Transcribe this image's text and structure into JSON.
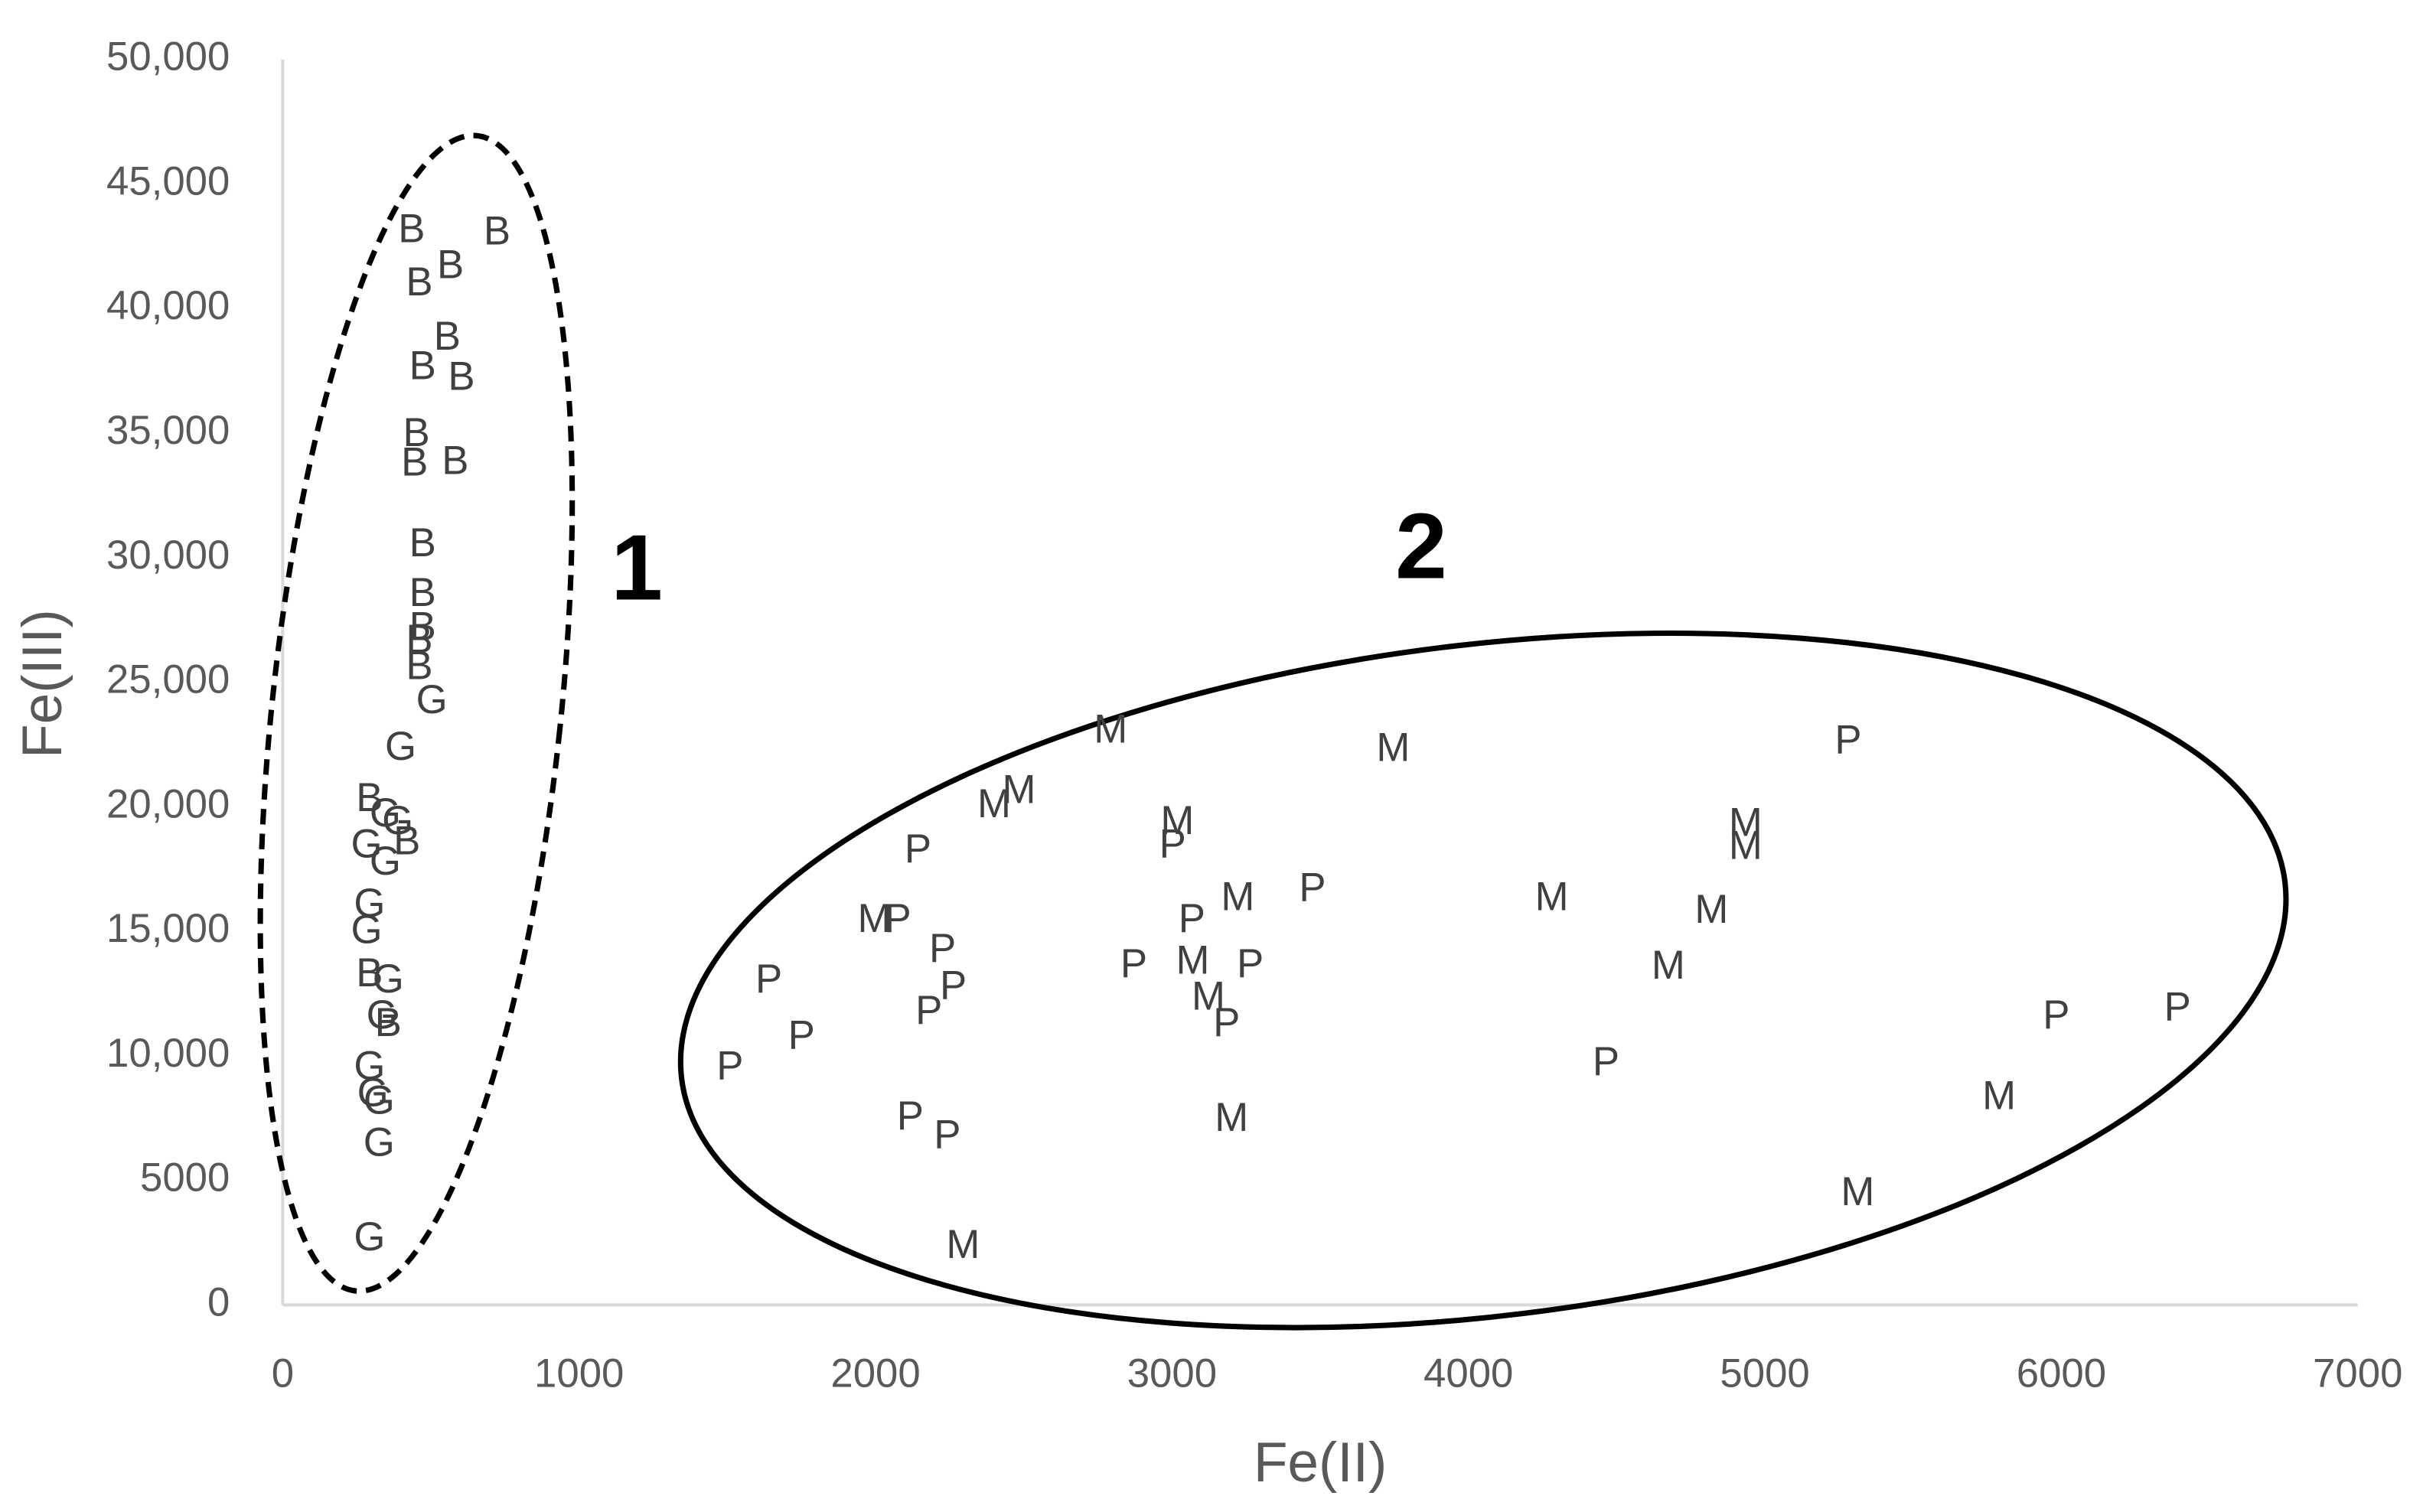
{
  "chart_data": {
    "type": "scatter",
    "x_label": "Fe(II)",
    "y_label": "Fe(III)",
    "xlim": [
      0,
      7000
    ],
    "xticks": [
      0,
      1000,
      2000,
      3000,
      4000,
      5000,
      6000,
      7000
    ],
    "ylim": [
      0,
      50000
    ],
    "yticks": [
      0,
      5000,
      {
        "value": 10000,
        "label": "10,000"
      },
      {
        "value": 15000,
        "label": "15,000"
      },
      {
        "value": 20000,
        "label": "20,000"
      },
      {
        "value": 25000,
        "label": "25,000"
      },
      {
        "value": 30000,
        "label": "30,000"
      },
      {
        "value": 35000,
        "label": "35,000"
      },
      {
        "value": 40000,
        "label": "40,000"
      },
      {
        "value": 45000,
        "label": "45,000"
      },
      {
        "value": 50000,
        "label": "50,000"
      }
    ],
    "grid": false,
    "annotations": [
      "1",
      "2"
    ],
    "series": [
      {
        "name": "B",
        "color": "#404040",
        "x": [
          435,
          723,
          566,
          461,
          555,
          472,
          603,
          451,
          445,
          582,
          472,
          472,
          472,
          461,
          461,
          293,
          293,
          356,
          419
        ],
        "values": [
          43100,
          43000,
          41650,
          40960,
          38780,
          37590,
          37160,
          34910,
          33730,
          33790,
          30490,
          28490,
          27120,
          26620,
          25560,
          20260,
          13220,
          11220,
          18520
        ]
      },
      {
        "name": "G",
        "color": "#404040",
        "x": [
          503,
          398,
          346,
          388,
          283,
          346,
          293,
          283,
          356,
          335,
          293,
          304,
          325,
          325,
          293
        ],
        "values": [
          24190,
          22320,
          19640,
          19330,
          18390,
          17710,
          16020,
          14960,
          12970,
          11530,
          9480,
          8420,
          8100,
          6420,
          2620
        ]
      },
      {
        "name": "P",
        "color": "#404040",
        "x": [
          5281,
          2143,
          3002,
          2075,
          3067,
          3474,
          1640,
          2226,
          2262,
          2180,
          2871,
          3264,
          3184,
          1750,
          1509,
          2117,
          2242,
          4464,
          5983,
          6392
        ],
        "values": [
          22570,
          18200,
          18390,
          15400,
          15400,
          16650,
          12970,
          14210,
          12720,
          11720,
          13590,
          13590,
          11220,
          10720,
          9480,
          7480,
          6730,
          9660,
          11530,
          11850
        ]
      },
      {
        "name": "M",
        "color": "#404040",
        "x": [
          2793,
          3746,
          2400,
          2484,
          3018,
          1996,
          3222,
          3070,
          3123,
          4281,
          4820,
          4935,
          4935,
          4674,
          5790,
          3201,
          5313,
          2295
        ],
        "values": [
          23000,
          22260,
          20010,
          20570,
          19330,
          15400,
          16270,
          13720,
          12280,
          16270,
          15770,
          19260,
          18330,
          13530,
          8290,
          7420,
          4430,
          2310
        ]
      }
    ]
  }
}
